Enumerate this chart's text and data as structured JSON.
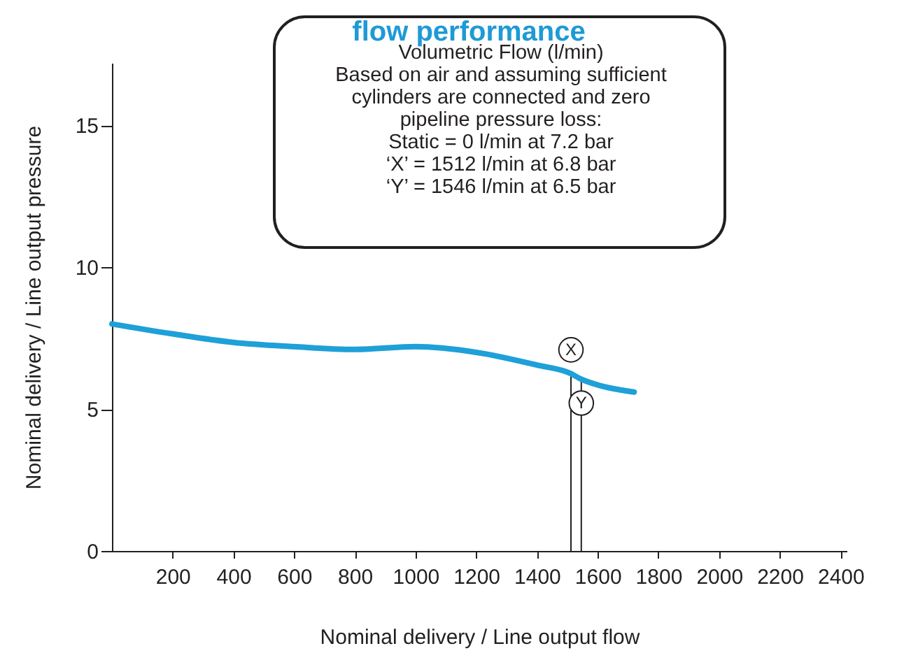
{
  "chart_data": {
    "type": "line",
    "title": "flow performance",
    "subtitle": "Volumetric Flow (l/min)\nBased on air and assuming sufficient\ncylinders are connected and zero\npipeline pressure loss:\nStatic = 0 l/min at 7.2 bar\n‘X’ = 1512 l/min at 6.8 bar\n‘Y’ = 1546 l/min at 6.5 bar",
    "xlabel": "Nominal delivery / Line output flow",
    "ylabel": "Nominal delivery / Line output pressure",
    "x": [
      0,
      200,
      400,
      600,
      800,
      1000,
      1200,
      1400,
      1512,
      1546,
      1600,
      1720
    ],
    "series": [
      {
        "color": "#1ea0d8",
        "values": [
          8.0,
          7.65,
          7.35,
          7.2,
          7.1,
          7.2,
          7.0,
          6.55,
          6.25,
          6.05,
          5.85,
          5.6
        ]
      }
    ],
    "xlim": [
      0,
      2420
    ],
    "ylim": [
      0,
      17.2
    ],
    "xticks": [
      200,
      400,
      600,
      800,
      1000,
      1200,
      1400,
      1600,
      1800,
      2000,
      2200,
      2400
    ],
    "yticks": [
      0,
      5,
      10,
      15
    ],
    "annotations": [
      {
        "text": "X",
        "x": 1512,
        "y": 6.25
      },
      {
        "text": "Y",
        "x": 1546,
        "y": 6.05
      }
    ],
    "grid": false,
    "marker": "none",
    "line_style": "solid"
  }
}
